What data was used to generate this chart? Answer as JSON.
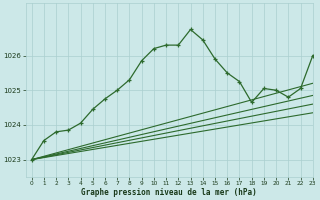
{
  "title": "Graphe pression niveau de la mer (hPa)",
  "bg_color": "#cce8e8",
  "grid_color": "#aacfcf",
  "line_color": "#2d6a2d",
  "xlim": [
    -0.5,
    23
  ],
  "ylim": [
    1022.5,
    1027.5
  ],
  "xticks": [
    0,
    1,
    2,
    3,
    4,
    5,
    6,
    7,
    8,
    9,
    10,
    11,
    12,
    13,
    14,
    15,
    16,
    17,
    18,
    19,
    20,
    21,
    22,
    23
  ],
  "yticks": [
    1023,
    1024,
    1025,
    1026
  ],
  "line1_x": [
    0,
    1,
    2,
    3,
    4,
    5,
    6,
    7,
    8,
    9,
    10,
    11,
    12,
    13,
    14,
    15,
    16,
    17,
    18,
    19,
    20,
    21,
    22,
    23
  ],
  "line1_y": [
    1023.0,
    1023.55,
    1023.8,
    1023.85,
    1024.05,
    1024.45,
    1024.75,
    1025.0,
    1025.3,
    1025.85,
    1026.2,
    1026.3,
    1026.3,
    1026.75,
    1026.45,
    1025.9,
    1025.5,
    1025.25,
    1024.65,
    1025.05,
    1025.0,
    1024.8,
    1025.05,
    1026.0
  ],
  "line2_x": [
    0,
    23
  ],
  "line2_y": [
    1023.0,
    1025.2
  ],
  "line3_x": [
    0,
    23
  ],
  "line3_y": [
    1023.0,
    1024.85
  ],
  "line4_x": [
    0,
    23
  ],
  "line4_y": [
    1023.0,
    1024.6
  ],
  "line5_x": [
    0,
    23
  ],
  "line5_y": [
    1023.0,
    1024.35
  ]
}
